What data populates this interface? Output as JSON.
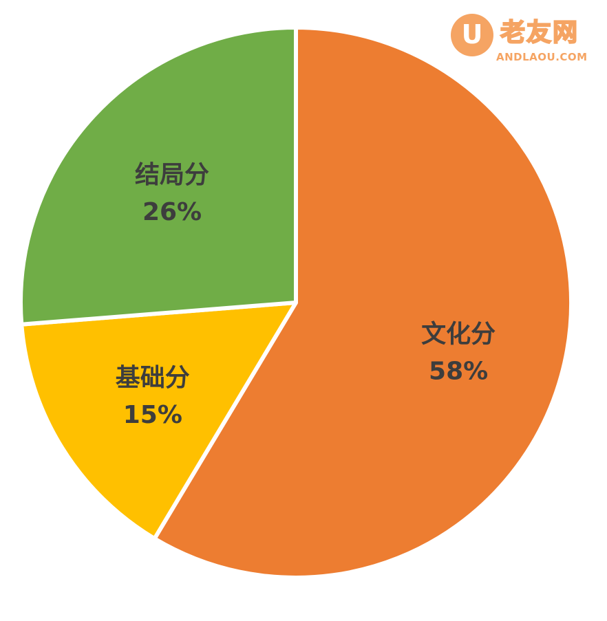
{
  "chart_data": {
    "type": "pie",
    "title": "",
    "slices": [
      {
        "label": "文化分",
        "value": 58,
        "value_text": "58%",
        "color": "#ed7d31"
      },
      {
        "label": "基础分",
        "value": 15,
        "value_text": "15%",
        "color": "#ffc000"
      },
      {
        "label": "结局分",
        "value": 26,
        "value_text": "26%",
        "color": "#70ad47"
      }
    ],
    "legend": "none",
    "start_angle": "12 o'clock",
    "direction": "clockwise"
  },
  "watermark": {
    "badge_glyph": "U",
    "name": "老友网",
    "url": "ANDLAOU.COM",
    "color": "#f5a463"
  }
}
